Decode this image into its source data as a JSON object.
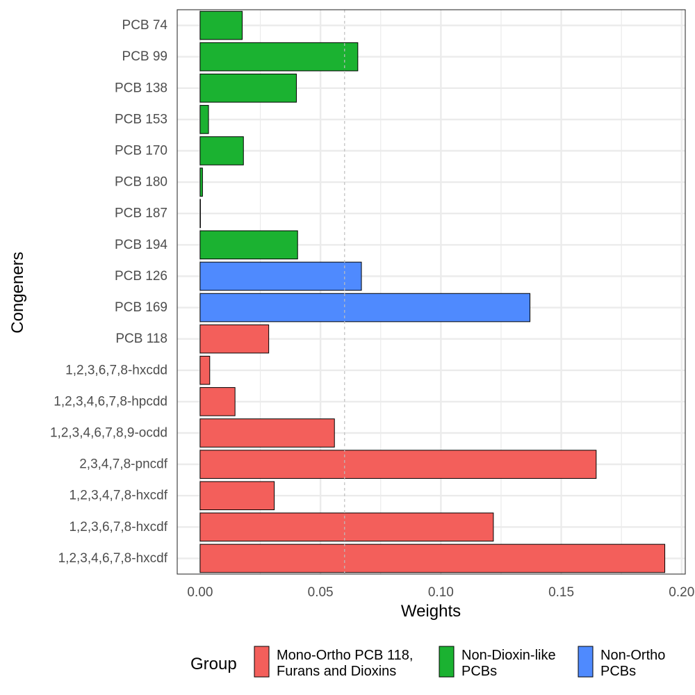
{
  "chart_data": {
    "type": "bar",
    "orientation": "horizontal",
    "xlabel": "Weights",
    "ylabel": "Congeners",
    "xlim": [
      -0.0095,
      0.2015
    ],
    "xticks": [
      0.0,
      0.05,
      0.1,
      0.15,
      0.2
    ],
    "xtick_labels": [
      "0.00",
      "0.05",
      "0.10",
      "0.15",
      "0.20"
    ],
    "grid": true,
    "reference_line": {
      "x": 0.06,
      "style": "dashed",
      "color": "#bebebe"
    },
    "categories": [
      "PCB 74",
      "PCB 99",
      "PCB 138",
      "PCB 153",
      "PCB 170",
      "PCB 180",
      "PCB 187",
      "PCB 194",
      "PCB 126",
      "PCB 169",
      "PCB 118",
      "1,2,3,6,7,8-hxcdd",
      "1,2,3,4,6,7,8-hpcdd",
      "1,2,3,4,6,7,8,9-ocdd",
      "2,3,4,7,8-pncdf",
      "1,2,3,4,7,8-hxcdf",
      "1,2,3,6,7,8-hxcdf",
      "1,2,3,4,6,7,8-hxcdf"
    ],
    "values": [
      0.0175,
      0.0655,
      0.04,
      0.0035,
      0.018,
      0.001,
      0.0,
      0.0405,
      0.067,
      0.137,
      0.0285,
      0.004,
      0.0145,
      0.0558,
      0.1645,
      0.0308,
      0.1218,
      0.193
    ],
    "groups": [
      1,
      1,
      1,
      1,
      1,
      1,
      1,
      1,
      2,
      2,
      0,
      0,
      0,
      0,
      0,
      0,
      0,
      0
    ],
    "legend": {
      "title": "Group",
      "placement": "bottom",
      "entries": [
        {
          "label_lines": [
            "Mono-Ortho PCB 118,",
            "Furans and Dioxins"
          ],
          "color": "#f35f5b"
        },
        {
          "label_lines": [
            "Non-Dioxin-like",
            "PCBs"
          ],
          "color": "#1bb231"
        },
        {
          "label_lines": [
            "Non-Ortho",
            "PCBs"
          ],
          "color": "#4f8afe"
        }
      ]
    }
  }
}
